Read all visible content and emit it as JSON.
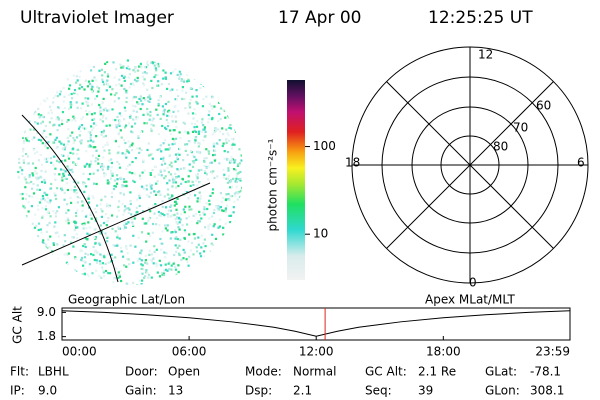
{
  "header": {
    "instrument": "Ultraviolet Imager",
    "date": "17 Apr 00",
    "time": "12:25:25 UT"
  },
  "colorbar": {
    "label": "photon cm⁻²s⁻¹",
    "scale": "log",
    "lim": [
      3,
      575
    ],
    "ticks": [
      10,
      100
    ]
  },
  "dial": {
    "labels": [
      "12",
      "18",
      "6",
      "0"
    ],
    "rings": [
      "60",
      "70",
      "80"
    ]
  },
  "chart_data": {
    "type": "line",
    "ylabel": "GC Alt",
    "left_title": "Geographic Lat/Lon",
    "right_title": "Apex MLat/MLT",
    "x": [
      0,
      2,
      4,
      6,
      8,
      10,
      11,
      12,
      13,
      14,
      16,
      18,
      20,
      22,
      23.98
    ],
    "series": [
      {
        "color": "#000000",
        "values": [
          9.5,
          9.0,
          8.3,
          7.4,
          6.2,
          4.6,
          3.4,
          1.9,
          3.4,
          4.6,
          6.2,
          7.4,
          8.3,
          9.0,
          9.5
        ]
      }
    ],
    "marker_x": 12.42,
    "marker_color": "#e0241b",
    "xlim": [
      0,
      23.98
    ],
    "ylim": [
      0.8,
      10.3
    ],
    "xticks": [
      {
        "value": 0,
        "label": "00:00"
      },
      {
        "value": 6,
        "label": "06:00"
      },
      {
        "value": 12,
        "label": "12:00"
      },
      {
        "value": 18,
        "label": "18:00"
      },
      {
        "value": 23.98,
        "label": "23:59"
      }
    ],
    "yticks": [
      1.8,
      {
        "value": 9,
        "label": "9.0"
      }
    ]
  },
  "footer": {
    "rows": [
      [
        [
          "Flt:",
          "LBHL"
        ],
        [
          "Door:",
          "Open"
        ],
        [
          "Mode:",
          "Normal"
        ],
        [
          "GC Alt:",
          "2.1 Re"
        ],
        [
          "GLat:",
          "-78.1"
        ]
      ],
      [
        [
          "IP:",
          "9.0"
        ],
        [
          "Gain:",
          "13"
        ],
        [
          "Dsp:",
          "2.1"
        ],
        [
          "Seq:",
          "39"
        ],
        [
          "GLon:",
          "308.1"
        ]
      ]
    ]
  }
}
